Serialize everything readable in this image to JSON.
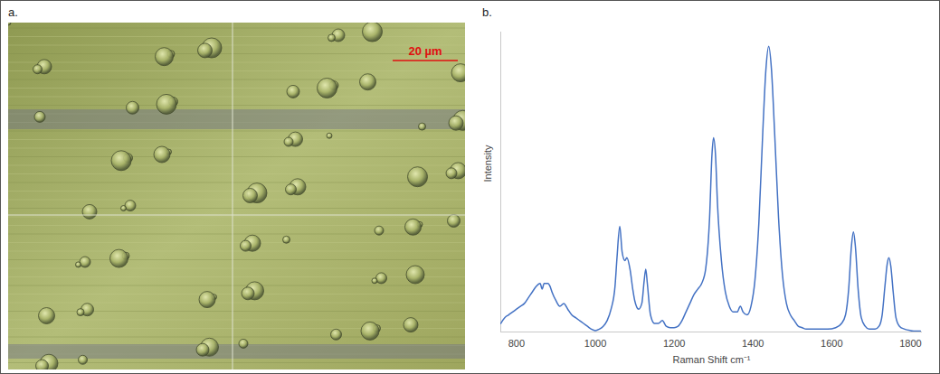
{
  "panel_a": {
    "panel_label": "a.",
    "scale_bar": "20 µm"
  },
  "chart_data": {
    "panel_label": "b.",
    "type": "line",
    "x_label": "Raman Shift cm⁻¹",
    "y_label": "Intensity",
    "x": [
      760,
      770,
      780,
      790,
      800,
      810,
      820,
      830,
      840,
      850,
      860,
      865,
      870,
      880,
      885,
      890,
      900,
      910,
      920,
      930,
      940,
      950,
      960,
      970,
      980,
      990,
      1000,
      1010,
      1020,
      1030,
      1040,
      1050,
      1055,
      1062,
      1068,
      1075,
      1080,
      1088,
      1095,
      1100,
      1110,
      1118,
      1124,
      1128,
      1132,
      1140,
      1150,
      1160,
      1170,
      1180,
      1190,
      1200,
      1210,
      1220,
      1230,
      1240,
      1250,
      1260,
      1270,
      1280,
      1290,
      1296,
      1300,
      1305,
      1310,
      1320,
      1330,
      1340,
      1350,
      1360,
      1368,
      1375,
      1385,
      1395,
      1405,
      1415,
      1425,
      1433,
      1440,
      1447,
      1455,
      1465,
      1475,
      1485,
      1495,
      1505,
      1515,
      1525,
      1535,
      1550,
      1570,
      1590,
      1610,
      1625,
      1635,
      1643,
      1650,
      1655,
      1660,
      1667,
      1675,
      1685,
      1695,
      1710,
      1720,
      1728,
      1735,
      1741,
      1745,
      1750,
      1756,
      1763,
      1772,
      1785,
      1800,
      1815,
      1825
    ],
    "values": [
      3,
      5,
      6,
      7,
      8,
      9,
      10,
      12,
      14,
      16,
      17,
      15,
      17,
      17,
      16,
      14,
      11,
      9,
      10,
      8,
      6,
      5,
      4,
      3,
      2,
      1,
      0.5,
      1,
      2,
      4,
      8,
      16,
      26,
      37,
      28,
      25,
      26,
      22,
      15,
      11,
      8,
      10,
      18,
      22,
      17,
      6,
      3,
      3,
      4,
      2,
      1.5,
      1.5,
      2,
      4,
      7,
      10,
      13,
      15,
      17,
      22,
      40,
      62,
      68,
      62,
      45,
      25,
      14,
      9,
      7,
      7,
      9,
      7,
      6,
      9,
      18,
      38,
      70,
      92,
      100,
      92,
      70,
      40,
      20,
      10,
      6,
      4,
      2,
      1.5,
      1,
      1,
      1,
      1,
      1.5,
      3,
      6,
      15,
      30,
      35,
      30,
      15,
      5,
      2,
      1,
      1,
      2,
      6,
      16,
      24,
      26,
      23,
      14,
      5,
      2,
      1,
      0.5,
      0.3,
      0.3
    ],
    "color": "#4472c4",
    "xlim": [
      760,
      1830
    ],
    "ylim": [
      0,
      105
    ],
    "xticks": [
      800,
      1000,
      1200,
      1400,
      1600,
      1800
    ],
    "tick_labels": "x",
    "grid": false
  }
}
